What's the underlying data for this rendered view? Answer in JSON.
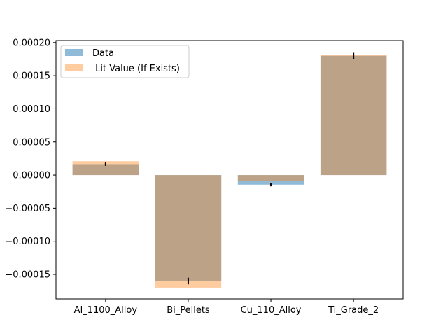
{
  "chart_data": {
    "type": "bar",
    "categories": [
      "Al_1100_Alloy",
      "Bi_Pellets",
      "Cu_110_Alloy",
      "Ti_Grade_2"
    ],
    "series": [
      {
        "name": "Data",
        "color": "#1f77b4",
        "opacity": 0.5,
        "values": [
          1.65e-05,
          -0.00016,
          -1.45e-05,
          0.00018
        ],
        "errors": [
          2.5e-06,
          5e-06,
          2.5e-06,
          4.5e-06
        ]
      },
      {
        "name": " Lit Value (If Exists)",
        "color": "#ff7f0e",
        "opacity": 0.4,
        "values": [
          2.1e-05,
          -0.00017,
          -9.5e-06,
          0.000181
        ]
      }
    ],
    "ylim": [
      -0.000187,
      0.000203
    ],
    "yticks": [
      -0.00015,
      -0.0001,
      -5e-05,
      0,
      5e-05,
      0.0001,
      0.00015,
      0.0002
    ],
    "ytick_labels": [
      "−0.00015",
      "−0.00010",
      "−0.00005",
      "0.00000",
      "0.00005",
      "0.00010",
      "0.00015",
      "0.00020"
    ],
    "title": "",
    "xlabel": "",
    "ylabel": "",
    "grid": false,
    "legend_position": "top-left"
  }
}
